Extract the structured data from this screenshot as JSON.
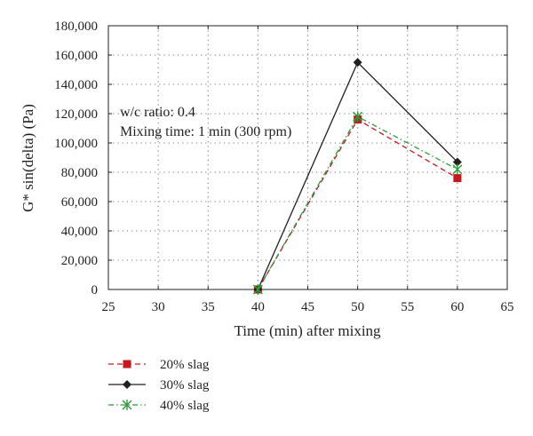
{
  "chart_data": {
    "type": "line",
    "xlabel": "Time (min) after mixing",
    "ylabel": "G* sin(delta) (Pa)",
    "xlim": [
      25,
      65
    ],
    "ylim": [
      0,
      180000
    ],
    "x_ticks": [
      "25",
      "30",
      "35",
      "40",
      "45",
      "50",
      "55",
      "60",
      "65"
    ],
    "y_ticks": [
      "0",
      "20,000",
      "40,000",
      "60,000",
      "80,000",
      "100,000",
      "120,000",
      "140,000",
      "160,000",
      "180,000"
    ],
    "grid": true,
    "legend_position": "bottom-left (below plot)",
    "annotations": [
      "w/c ratio: 0.4",
      "Mixing time: 1 min (300 rpm)"
    ],
    "series": [
      {
        "name": "20% slag",
        "color": "#c8171e",
        "line_style": "dashed",
        "marker": "square",
        "x": [
          40,
          50,
          60
        ],
        "y": [
          0,
          116000,
          76000
        ]
      },
      {
        "name": "30% slag",
        "color": "#231f20",
        "line_style": "solid",
        "marker": "diamond",
        "x": [
          40,
          50,
          60
        ],
        "y": [
          0,
          155000,
          87000
        ]
      },
      {
        "name": "40% slag",
        "color": "#2e9a3a",
        "line_style": "dash-dot",
        "marker": "asterisk",
        "x": [
          40,
          50,
          60
        ],
        "y": [
          0,
          118000,
          82000
        ]
      }
    ]
  }
}
